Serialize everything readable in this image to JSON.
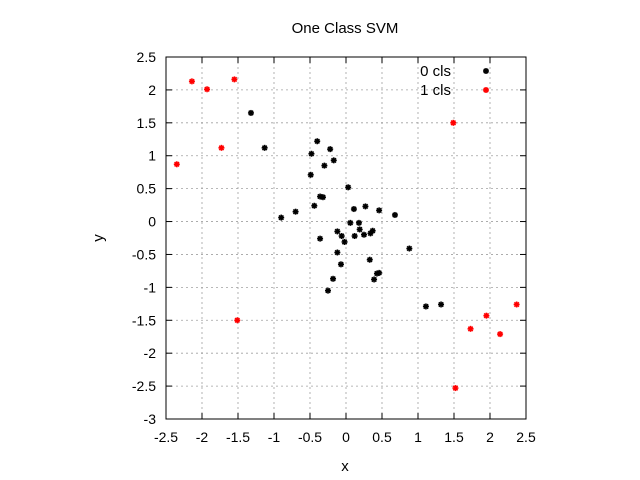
{
  "chart_data": {
    "type": "scatter",
    "title": "One Class SVM",
    "xlabel": "x",
    "ylabel": "y",
    "xlim": [
      -2.5,
      2.5
    ],
    "ylim": [
      -3,
      2.5
    ],
    "xticks": [
      "-2.5",
      "-2",
      "-1.5",
      "-1",
      "-0.5",
      "0",
      "0.5",
      "1",
      "1.5",
      "2",
      "2.5"
    ],
    "xtick_values": [
      -2.5,
      -2,
      -1.5,
      -1,
      -0.5,
      0,
      0.5,
      1,
      1.5,
      2,
      2.5
    ],
    "yticks": [
      "2.5",
      "2",
      "1.5",
      "1",
      "0.5",
      "0",
      "-0.5",
      "-1",
      "-1.5",
      "-2",
      "-2.5",
      "-3"
    ],
    "ytick_values": [
      2.5,
      2,
      1.5,
      1,
      0.5,
      0,
      -0.5,
      -1,
      -1.5,
      -2,
      -2.5,
      -3
    ],
    "grid": true,
    "legend_position": "top-right",
    "series": [
      {
        "name": "0 cls",
        "color": "#000000",
        "points": [
          [
            -1.32,
            1.65
          ],
          [
            -1.13,
            1.12
          ],
          [
            -0.4,
            1.22
          ],
          [
            -0.48,
            1.03
          ],
          [
            -0.22,
            1.1
          ],
          [
            -0.17,
            0.93
          ],
          [
            -0.3,
            0.85
          ],
          [
            -0.49,
            0.71
          ],
          [
            0.03,
            0.52
          ],
          [
            -0.36,
            0.38
          ],
          [
            -0.32,
            0.37
          ],
          [
            -0.44,
            0.24
          ],
          [
            -0.7,
            0.15
          ],
          [
            -0.9,
            0.06
          ],
          [
            0.11,
            0.19
          ],
          [
            0.27,
            0.23
          ],
          [
            0.46,
            0.17
          ],
          [
            0.68,
            0.1
          ],
          [
            0.06,
            -0.02
          ],
          [
            0.18,
            -0.02
          ],
          [
            0.19,
            -0.12
          ],
          [
            0.25,
            -0.2
          ],
          [
            0.34,
            -0.18
          ],
          [
            0.37,
            -0.14
          ],
          [
            0.12,
            -0.22
          ],
          [
            -0.12,
            -0.15
          ],
          [
            -0.06,
            -0.22
          ],
          [
            -0.02,
            -0.31
          ],
          [
            -0.36,
            -0.26
          ],
          [
            -0.12,
            -0.47
          ],
          [
            0.33,
            -0.58
          ],
          [
            -0.07,
            -0.65
          ],
          [
            0.43,
            -0.79
          ],
          [
            0.46,
            -0.78
          ],
          [
            0.39,
            -0.88
          ],
          [
            -0.18,
            -0.87
          ],
          [
            -0.25,
            -1.05
          ],
          [
            0.88,
            -0.41
          ],
          [
            1.11,
            -1.29
          ],
          [
            1.32,
            -1.26
          ]
        ]
      },
      {
        "name": "1 cls",
        "color": "#ff0000",
        "points": [
          [
            -2.35,
            0.87
          ],
          [
            -2.14,
            2.13
          ],
          [
            -1.93,
            2.01
          ],
          [
            -1.55,
            2.16
          ],
          [
            -1.73,
            1.12
          ],
          [
            -1.51,
            -1.5
          ],
          [
            1.49,
            1.5
          ],
          [
            1.73,
            -1.63
          ],
          [
            1.95,
            -1.43
          ],
          [
            2.14,
            -1.71
          ],
          [
            2.37,
            -1.26
          ],
          [
            1.52,
            -2.53
          ]
        ]
      }
    ]
  }
}
